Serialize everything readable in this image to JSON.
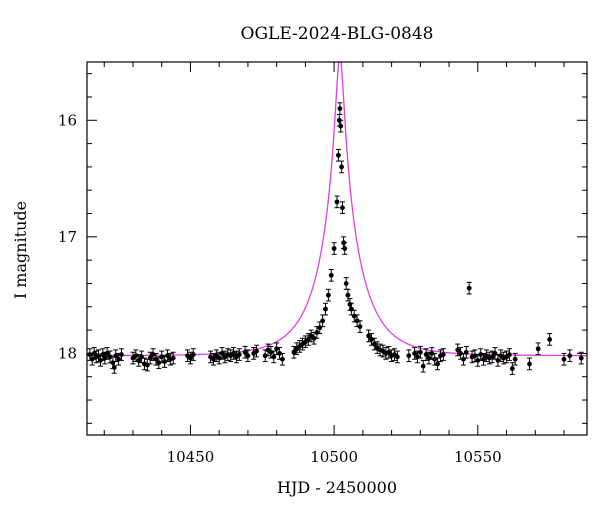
{
  "chart_data": {
    "type": "scatter",
    "title": "OGLE-2024-BLG-0848",
    "xlabel": "HJD - 2450000",
    "ylabel": "I magnitude",
    "xlim": [
      10414,
      10588
    ],
    "ylim": [
      18.7,
      15.5
    ],
    "y_inverted": true,
    "x_ticks": [
      10450,
      10500,
      10550
    ],
    "y_ticks": [
      16,
      17,
      18
    ],
    "grid": false,
    "model_color": "#e040e0",
    "point_color": "#000000",
    "model": {
      "label": "",
      "baseline_mag": 18.02,
      "t0": 10502,
      "peak_mag": 15.45,
      "tE": 14
    },
    "series": [
      {
        "values": [
          [
            10415.0,
            18.01
          ],
          [
            10415.8,
            18.05
          ],
          [
            10416.5,
            18.0
          ],
          [
            10417.2,
            18.03
          ],
          [
            10418.0,
            18.02
          ],
          [
            10418.7,
            18.06
          ],
          [
            10419.5,
            18.01
          ],
          [
            10420.2,
            18.04
          ],
          [
            10421.0,
            18.0
          ],
          [
            10422.0,
            18.03
          ],
          [
            10423.0,
            18.08
          ],
          [
            10423.5,
            18.12
          ],
          [
            10424.0,
            18.02
          ],
          [
            10425.0,
            18.05
          ],
          [
            10426.0,
            18.01
          ],
          [
            10430.0,
            18.04
          ],
          [
            10431.0,
            18.02
          ],
          [
            10432.0,
            18.06
          ],
          [
            10433.0,
            18.03
          ],
          [
            10434.0,
            18.09
          ],
          [
            10435.0,
            18.1
          ],
          [
            10436.0,
            18.04
          ],
          [
            10437.0,
            18.01
          ],
          [
            10438.0,
            18.05
          ],
          [
            10439.0,
            18.08
          ],
          [
            10440.0,
            18.03
          ],
          [
            10441.0,
            18.07
          ],
          [
            10442.0,
            18.02
          ],
          [
            10443.0,
            18.05
          ],
          [
            10444.0,
            18.04
          ],
          [
            10449.0,
            18.02
          ],
          [
            10450.0,
            18.04
          ],
          [
            10451.0,
            18.01
          ],
          [
            10457.0,
            18.03
          ],
          [
            10458.0,
            18.05
          ],
          [
            10459.0,
            18.02
          ],
          [
            10460.0,
            18.04
          ],
          [
            10461.0,
            18.0
          ],
          [
            10462.0,
            18.03
          ],
          [
            10463.0,
            18.01
          ],
          [
            10464.0,
            18.02
          ],
          [
            10465.0,
            18.0
          ],
          [
            10466.0,
            18.03
          ],
          [
            10467.0,
            18.01
          ],
          [
            10469.0,
            17.99
          ],
          [
            10470.0,
            18.02
          ],
          [
            10472.0,
            18.0
          ],
          [
            10473.0,
            17.98
          ],
          [
            10476.0,
            18.02
          ],
          [
            10477.0,
            17.97
          ],
          [
            10478.0,
            17.99
          ],
          [
            10479.0,
            18.03
          ],
          [
            10480.0,
            17.96
          ],
          [
            10481.0,
            18.0
          ],
          [
            10482.0,
            18.05
          ],
          [
            10486.0,
            17.99
          ],
          [
            10487.0,
            17.96
          ],
          [
            10488.0,
            17.94
          ],
          [
            10489.0,
            17.92
          ],
          [
            10490.0,
            17.9
          ],
          [
            10491.0,
            17.88
          ],
          [
            10492.0,
            17.85
          ],
          [
            10493.0,
            17.87
          ],
          [
            10494.0,
            17.82
          ],
          [
            10495.0,
            17.78
          ],
          [
            10496.0,
            17.72
          ],
          [
            10497.0,
            17.62
          ],
          [
            10498.0,
            17.5
          ],
          [
            10499.0,
            17.33
          ],
          [
            10500.0,
            17.1
          ],
          [
            10501.0,
            16.7
          ],
          [
            10501.5,
            16.3
          ],
          [
            10501.8,
            16.0
          ],
          [
            10502.0,
            15.9
          ],
          [
            10502.3,
            16.05
          ],
          [
            10502.6,
            16.4
          ],
          [
            10502.9,
            16.75
          ],
          [
            10503.3,
            17.05
          ],
          [
            10503.7,
            17.1
          ],
          [
            10504.2,
            17.4
          ],
          [
            10504.8,
            17.5
          ],
          [
            10505.5,
            17.58
          ],
          [
            10506.0,
            17.62
          ],
          [
            10507.0,
            17.68
          ],
          [
            10508.0,
            17.72
          ],
          [
            10509.0,
            17.77
          ],
          [
            10512.0,
            17.85
          ],
          [
            10513.0,
            17.88
          ],
          [
            10514.0,
            17.92
          ],
          [
            10515.0,
            17.95
          ],
          [
            10516.0,
            17.97
          ],
          [
            10517.0,
            17.98
          ],
          [
            10518.0,
            18.0
          ],
          [
            10519.0,
            17.99
          ],
          [
            10520.0,
            18.02
          ],
          [
            10521.0,
            18.01
          ],
          [
            10522.0,
            18.03
          ],
          [
            10526.0,
            18.02
          ],
          [
            10528.0,
            18.0
          ],
          [
            10529.0,
            18.03
          ],
          [
            10530.0,
            17.99
          ],
          [
            10531.0,
            18.11
          ],
          [
            10532.0,
            18.01
          ],
          [
            10533.0,
            18.04
          ],
          [
            10534.0,
            18.0
          ],
          [
            10535.0,
            18.05
          ],
          [
            10536.0,
            18.09
          ],
          [
            10537.0,
            18.02
          ],
          [
            10538.0,
            18.01
          ],
          [
            10543.0,
            17.97
          ],
          [
            10544.0,
            18.0
          ],
          [
            10545.0,
            18.05
          ],
          [
            10546.0,
            17.99
          ],
          [
            10547.0,
            17.44
          ],
          [
            10548.0,
            18.03
          ],
          [
            10549.0,
            18.02
          ],
          [
            10550.0,
            18.06
          ],
          [
            10551.0,
            18.01
          ],
          [
            10552.0,
            18.05
          ],
          [
            10553.0,
            18.02
          ],
          [
            10554.0,
            18.04
          ],
          [
            10555.0,
            18.03
          ],
          [
            10556.0,
            18.0
          ],
          [
            10557.0,
            18.06
          ],
          [
            10558.0,
            18.02
          ],
          [
            10559.0,
            18.04
          ],
          [
            10560.0,
            18.03
          ],
          [
            10561.0,
            18.01
          ],
          [
            10562.0,
            18.13
          ],
          [
            10563.0,
            18.05
          ],
          [
            10568.0,
            18.09
          ],
          [
            10571.0,
            17.96
          ],
          [
            10575.0,
            17.88
          ],
          [
            10580.0,
            18.05
          ],
          [
            10582.0,
            18.02
          ],
          [
            10586.0,
            18.04
          ]
        ],
        "error": 0.05
      }
    ]
  }
}
